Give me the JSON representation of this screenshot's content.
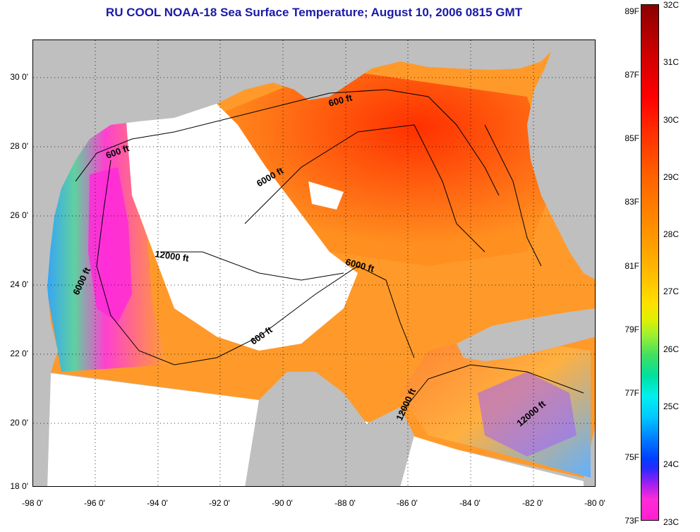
{
  "title": "RU COOL  NOAA-18  Sea Surface Temperature;  August 10, 2006 0815 GMT",
  "x_ticks": [
    "-98 0'",
    "-96 0'",
    "-94 0'",
    "-92 0'",
    "-90 0'",
    "-88 0'",
    "-86 0'",
    "-84 0'",
    "-82 0'",
    "-80 0'"
  ],
  "y_ticks": [
    "30 0'",
    "28 0'",
    "26 0'",
    "24 0'",
    "22 0'",
    "20 0'",
    "18 0'"
  ],
  "colorbar": {
    "fahrenheit": [
      "89F",
      "87F",
      "85F",
      "83F",
      "81F",
      "79F",
      "77F",
      "75F",
      "73F"
    ],
    "celsius": [
      "32C",
      "31C",
      "30C",
      "29C",
      "28C",
      "27C",
      "26C",
      "25C",
      "24C",
      "23C"
    ]
  },
  "contour_labels": [
    "600 ft",
    "600 ft",
    "6000 ft",
    "12000 ft",
    "6000 ft",
    "6000 ft",
    "600 ft",
    "12000 ft",
    "12000 ft"
  ],
  "colors": {
    "title": "#1a1aa8",
    "land": "#bfbfbf",
    "no_data": "#ffffff"
  }
}
